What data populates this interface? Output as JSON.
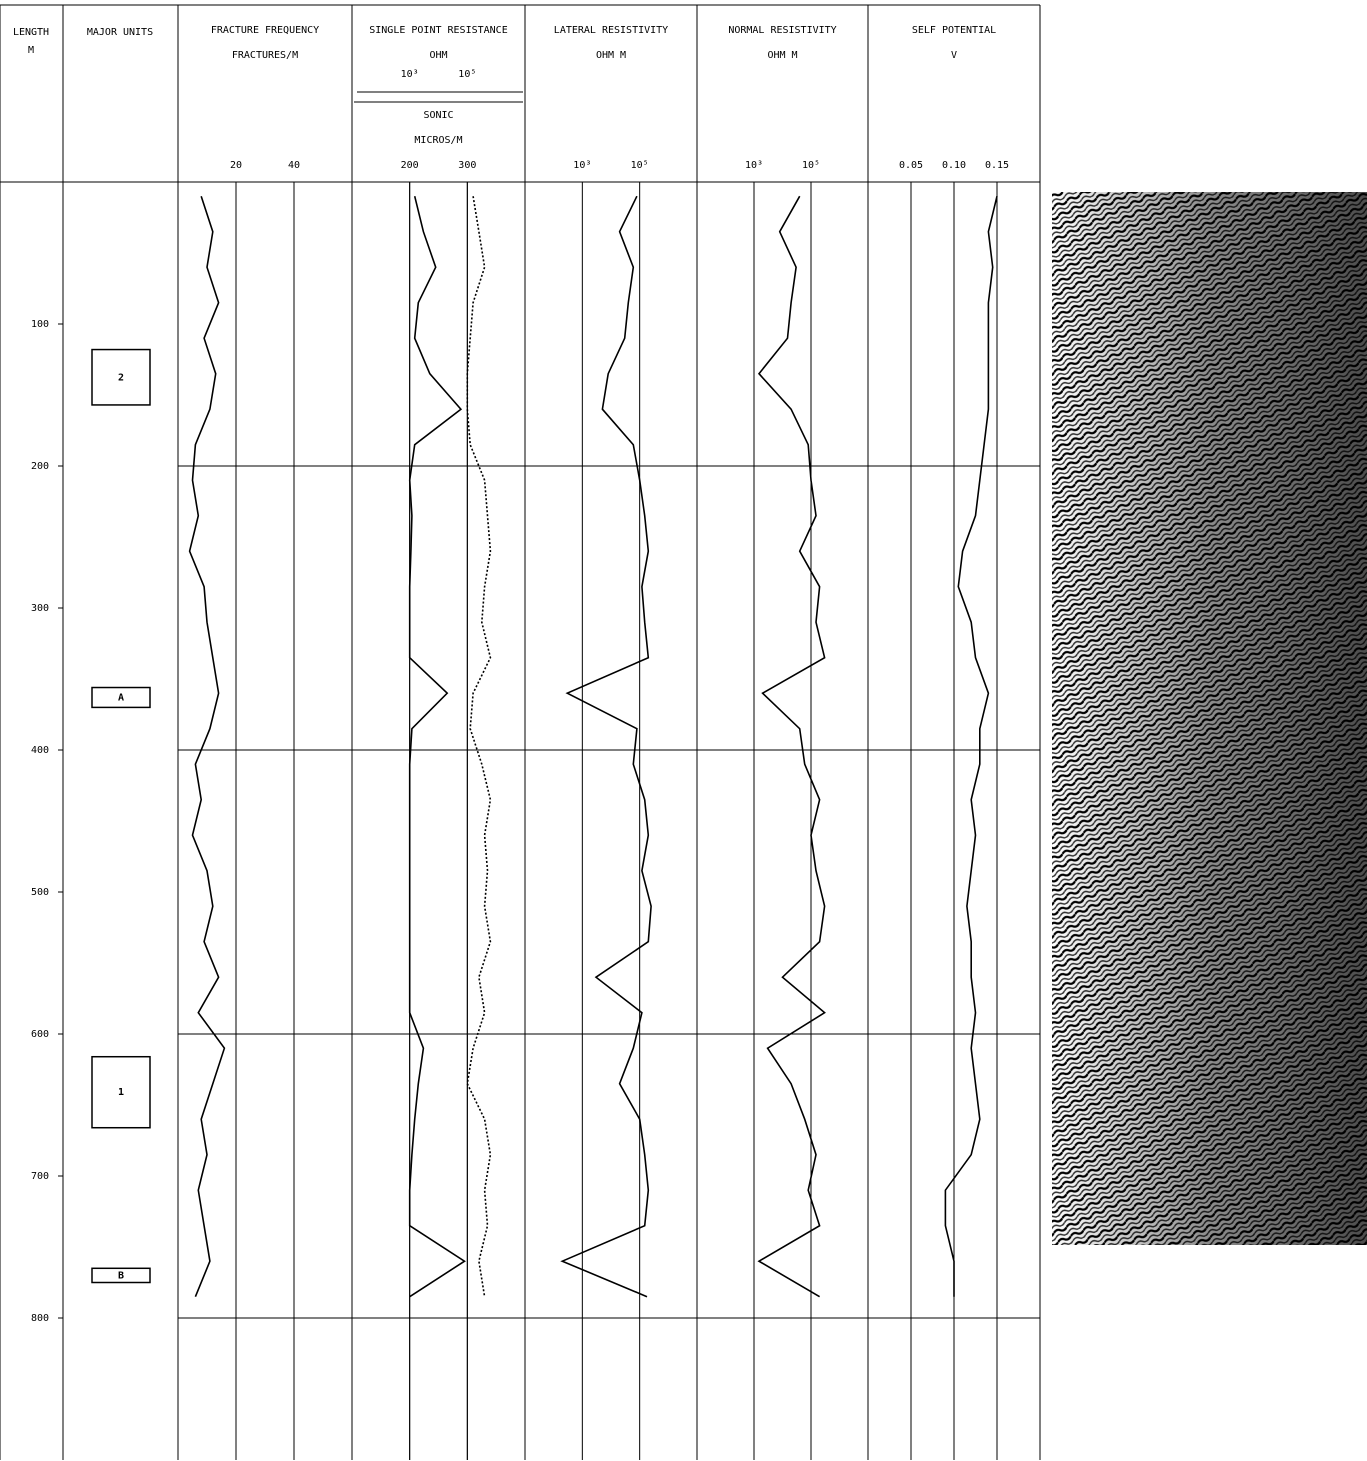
{
  "chart_data": {
    "type": "well-log",
    "depth_title": "LENGTH",
    "depth_unit": "M",
    "ylim": [
      0,
      900
    ],
    "yticks": [
      100,
      200,
      300,
      400,
      500,
      600,
      700,
      800
    ],
    "depths": [
      10,
      35,
      60,
      85,
      110,
      135,
      160,
      185,
      210,
      235,
      260,
      285,
      310,
      335,
      360,
      385,
      410,
      435,
      460,
      485,
      510,
      535,
      560,
      585,
      610,
      635,
      660,
      685,
      710,
      735,
      760,
      785
    ],
    "units_title": "MAJOR UNITS",
    "units": [
      {
        "label": "2",
        "top": 118,
        "bottom": 157
      },
      {
        "label": "A",
        "top": 356,
        "bottom": 370
      },
      {
        "label": "1",
        "top": 616,
        "bottom": 666
      },
      {
        "label": "B",
        "top": 765,
        "bottom": 775
      }
    ],
    "tracks": [
      {
        "title": "FRACTURE FREQUENCY",
        "unit": "FRACTURES/M",
        "series": [
          {
            "scale": "linear",
            "xlim": [
              0,
              60
            ],
            "xticks": [
              20,
              40
            ],
            "color": "#000000",
            "dashed": false,
            "values": [
              8,
              12,
              10,
              14,
              9,
              13,
              11,
              6,
              5,
              7,
              4,
              9,
              10,
              12,
              14,
              11,
              6,
              8,
              5,
              10,
              12,
              9,
              14,
              7,
              16,
              12,
              8,
              10,
              7,
              9,
              11,
              6
            ]
          }
        ]
      },
      {
        "title": "SINGLE POINT RESISTANCE",
        "unit": "OHM",
        "series": [
          {
            "scale": "log",
            "xlim": [
              10,
              10000000
            ],
            "xticks": [
              {
                "value": 1000,
                "label": "10³"
              },
              {
                "value": 100000,
                "label": "10⁵"
              }
            ],
            "color": "#000000",
            "dashed": false,
            "values": [
              1500,
              3000,
              8000,
              2000,
              1500,
              5000,
              60000,
              1500,
              1000,
              1200,
              1100,
              1000,
              1000,
              1000,
              20000,
              1200,
              1000,
              1000,
              1000,
              1000,
              1000,
              1000,
              1000,
              1000,
              3000,
              2000,
              1500,
              1200,
              1000,
              1000,
              80000,
              1000
            ]
          },
          {
            "name": "SONIC",
            "unit": "MICROS/M",
            "scale": "linear",
            "xlim": [
              100,
              400
            ],
            "xticks": [
              200,
              300
            ],
            "color": "#000000",
            "dashed": true,
            "values": [
              310,
              320,
              330,
              310,
              305,
              300,
              300,
              305,
              330,
              335,
              340,
              330,
              325,
              340,
              310,
              305,
              325,
              340,
              330,
              335,
              330,
              340,
              320,
              330,
              310,
              300,
              330,
              340,
              330,
              335,
              320,
              330
            ]
          }
        ]
      },
      {
        "title": "LATERAL RESISTIVITY",
        "unit": "OHM M",
        "series": [
          {
            "scale": "log",
            "xlim": [
              10,
              10000000
            ],
            "xticks": [
              {
                "value": 1000,
                "label": "10³"
              },
              {
                "value": 100000,
                "label": "10⁵"
              }
            ],
            "color": "#000000",
            "dashed": false,
            "values": [
              80000,
              20000,
              60000,
              40000,
              30000,
              8000,
              5000,
              60000,
              100000,
              150000,
              200000,
              120000,
              150000,
              200000,
              300,
              80000,
              60000,
              150000,
              200000,
              120000,
              250000,
              200000,
              3000,
              120000,
              60000,
              20000,
              100000,
              150000,
              200000,
              150000,
              200,
              180000
            ]
          }
        ]
      },
      {
        "title": "NORMAL RESISTIVITY",
        "unit": "OHM M",
        "series": [
          {
            "scale": "log",
            "xlim": [
              10,
              10000000
            ],
            "xticks": [
              {
                "value": 1000,
                "label": "10³"
              },
              {
                "value": 100000,
                "label": "10⁵"
              }
            ],
            "color": "#000000",
            "dashed": false,
            "values": [
              40000,
              8000,
              30000,
              20000,
              15000,
              1500,
              20000,
              80000,
              100000,
              150000,
              40000,
              200000,
              150000,
              300000,
              2000,
              40000,
              60000,
              200000,
              100000,
              150000,
              300000,
              200000,
              10000,
              300000,
              3000,
              20000,
              60000,
              150000,
              80000,
              200000,
              1500,
              200000
            ]
          }
        ]
      },
      {
        "title": "SELF POTENTIAL",
        "unit": "V",
        "series": [
          {
            "scale": "linear",
            "xlim": [
              0,
              0.2
            ],
            "xticks": [
              0.05,
              {
                "value": 0.1,
                "label": "0.10"
              },
              0.15
            ],
            "color": "#000000",
            "dashed": false,
            "values": [
              0.15,
              0.14,
              0.145,
              0.14,
              0.14,
              0.14,
              0.14,
              0.135,
              0.13,
              0.125,
              0.11,
              0.105,
              0.12,
              0.125,
              0.14,
              0.13,
              0.13,
              0.12,
              0.125,
              0.12,
              0.115,
              0.12,
              0.12,
              0.125,
              0.12,
              0.125,
              0.13,
              0.12,
              0.09,
              0.09,
              0.1,
              0.1
            ]
          }
        ]
      }
    ]
  }
}
